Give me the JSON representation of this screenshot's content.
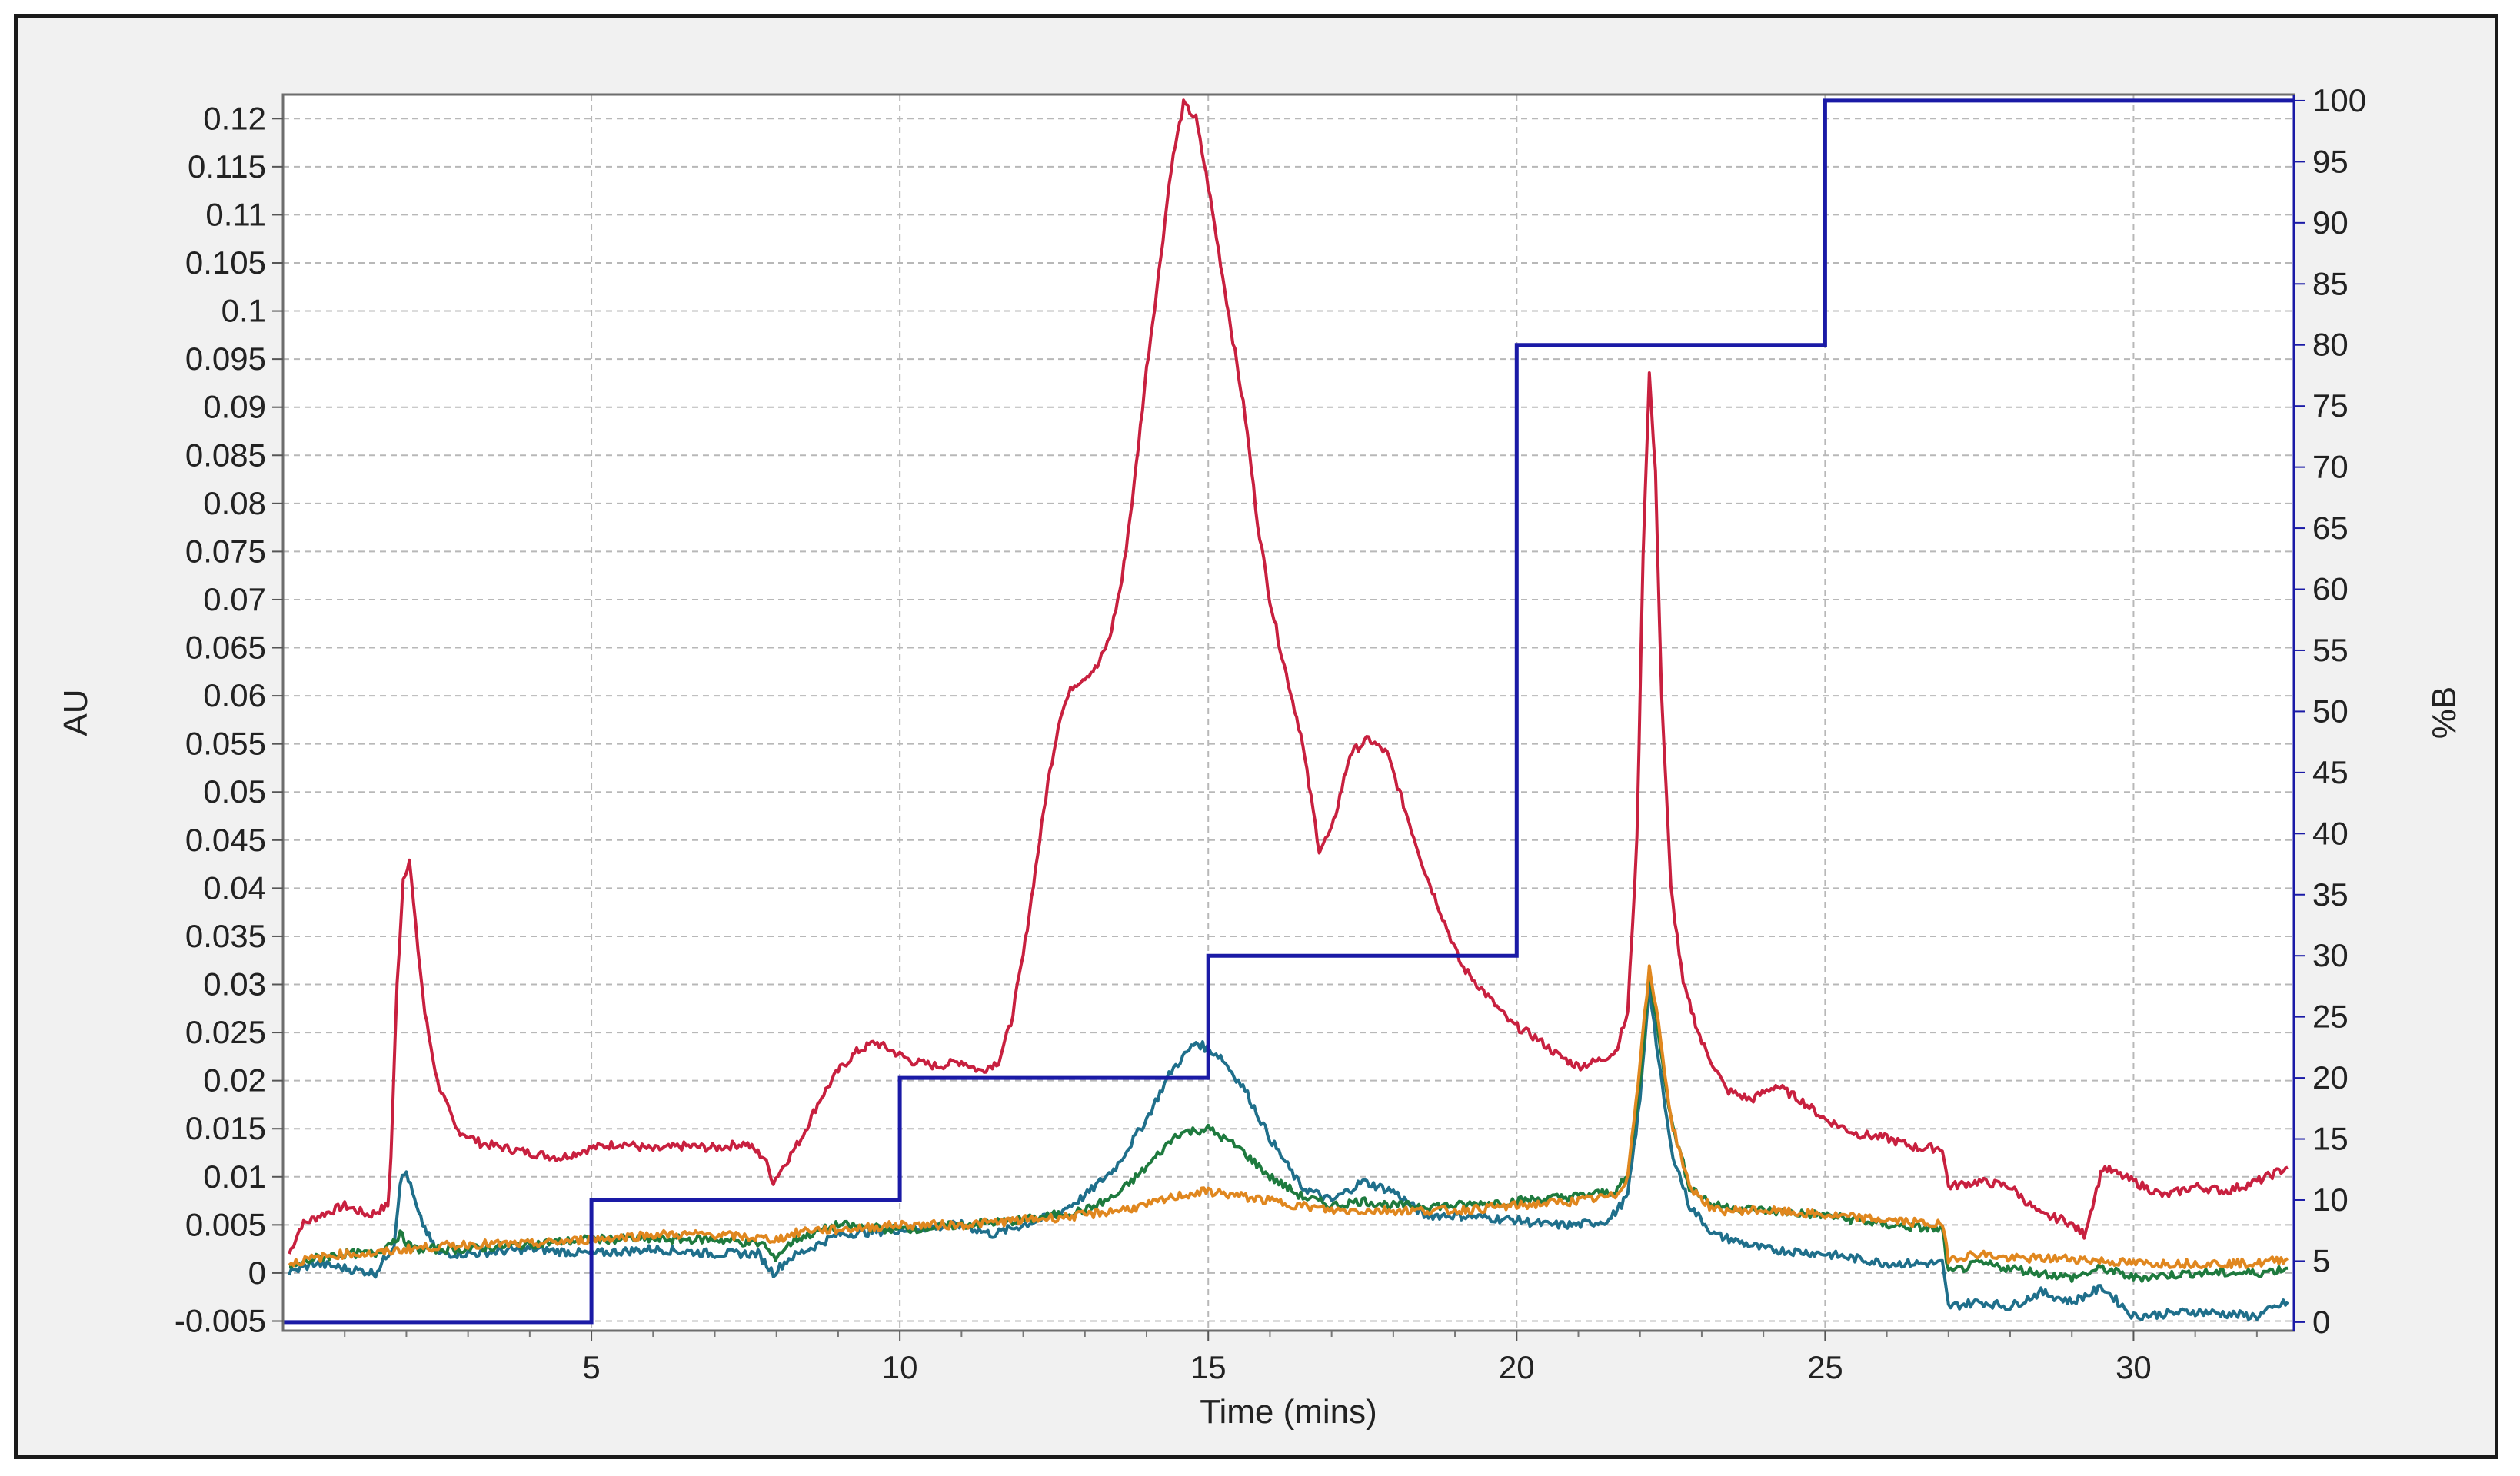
{
  "chart_data": {
    "type": "line",
    "xlabel": "Time (mins)",
    "ylabel": "AU",
    "y2label": "%B",
    "xlim": [
      0,
      32.6
    ],
    "ylim": [
      -0.006,
      0.1225
    ],
    "y2lim": [
      -0.7,
      100.5
    ],
    "xticks": [
      5,
      10,
      15,
      20,
      25,
      30
    ],
    "yticks": [
      -0.005,
      0,
      0.005,
      0.01,
      0.015,
      0.02,
      0.025,
      0.03,
      0.035,
      0.04,
      0.045,
      0.05,
      0.055,
      0.06,
      0.065,
      0.07,
      0.075,
      0.08,
      0.085,
      0.09,
      0.095,
      0.1,
      0.105,
      0.11,
      0.115,
      0.12
    ],
    "ytick_labels": [
      "-0.005",
      "0",
      "0.005",
      "0.01",
      "0.015",
      "0.02",
      "0.025",
      "0.03",
      "0.035",
      "0.04",
      "0.045",
      "0.05",
      "0.055",
      "0.06",
      "0.065",
      "0.07",
      "0.075",
      "0.08",
      "0.085",
      "0.09",
      "0.095",
      "0.1",
      "0.105",
      "0.11",
      "0.115",
      "0.12"
    ],
    "y2ticks": [
      0,
      5,
      10,
      15,
      20,
      25,
      30,
      35,
      40,
      45,
      50,
      55,
      60,
      65,
      70,
      75,
      80,
      85,
      90,
      95,
      100
    ],
    "grid": true,
    "series": [
      {
        "color": "#c8203f",
        "axis": "left",
        "points": [
          [
            0.1,
            0.002
          ],
          [
            0.3,
            0.005
          ],
          [
            0.6,
            0.006
          ],
          [
            1.0,
            0.007
          ],
          [
            1.4,
            0.006
          ],
          [
            1.7,
            0.007
          ],
          [
            1.75,
            0.012
          ],
          [
            1.85,
            0.03
          ],
          [
            1.95,
            0.041
          ],
          [
            2.05,
            0.043
          ],
          [
            2.15,
            0.036
          ],
          [
            2.3,
            0.027
          ],
          [
            2.5,
            0.02
          ],
          [
            2.8,
            0.015
          ],
          [
            3.2,
            0.0135
          ],
          [
            3.6,
            0.013
          ],
          [
            4.0,
            0.0125
          ],
          [
            4.5,
            0.012
          ],
          [
            5.0,
            0.013
          ],
          [
            5.5,
            0.0135
          ],
          [
            6.0,
            0.0128
          ],
          [
            6.5,
            0.0132
          ],
          [
            7.0,
            0.013
          ],
          [
            7.5,
            0.0135
          ],
          [
            7.8,
            0.012
          ],
          [
            7.95,
            0.0095
          ],
          [
            8.1,
            0.011
          ],
          [
            8.4,
            0.014
          ],
          [
            8.7,
            0.018
          ],
          [
            9.0,
            0.021
          ],
          [
            9.3,
            0.023
          ],
          [
            9.6,
            0.024
          ],
          [
            9.9,
            0.023
          ],
          [
            10.2,
            0.022
          ],
          [
            10.6,
            0.0215
          ],
          [
            11.0,
            0.022
          ],
          [
            11.3,
            0.021
          ],
          [
            11.6,
            0.022
          ],
          [
            11.8,
            0.026
          ],
          [
            12.0,
            0.033
          ],
          [
            12.2,
            0.042
          ],
          [
            12.4,
            0.051
          ],
          [
            12.6,
            0.058
          ],
          [
            12.8,
            0.061
          ],
          [
            13.0,
            0.062
          ],
          [
            13.2,
            0.063
          ],
          [
            13.4,
            0.066
          ],
          [
            13.6,
            0.072
          ],
          [
            13.8,
            0.082
          ],
          [
            14.0,
            0.094
          ],
          [
            14.2,
            0.104
          ],
          [
            14.4,
            0.115
          ],
          [
            14.6,
            0.1215
          ],
          [
            14.8,
            0.12
          ],
          [
            15.0,
            0.113
          ],
          [
            15.2,
            0.105
          ],
          [
            15.4,
            0.097
          ],
          [
            15.6,
            0.089
          ],
          [
            15.8,
            0.078
          ],
          [
            16.0,
            0.07
          ],
          [
            16.2,
            0.064
          ],
          [
            16.5,
            0.056
          ],
          [
            16.8,
            0.044
          ],
          [
            17.0,
            0.046
          ],
          [
            17.3,
            0.054
          ],
          [
            17.6,
            0.0555
          ],
          [
            17.9,
            0.054
          ],
          [
            18.2,
            0.048
          ],
          [
            18.5,
            0.042
          ],
          [
            18.8,
            0.037
          ],
          [
            19.1,
            0.032
          ],
          [
            19.5,
            0.029
          ],
          [
            19.9,
            0.026
          ],
          [
            20.3,
            0.0245
          ],
          [
            20.7,
            0.0225
          ],
          [
            21.0,
            0.0215
          ],
          [
            21.3,
            0.022
          ],
          [
            21.6,
            0.023
          ],
          [
            21.8,
            0.027
          ],
          [
            21.95,
            0.045
          ],
          [
            22.05,
            0.075
          ],
          [
            22.15,
            0.0935
          ],
          [
            22.25,
            0.083
          ],
          [
            22.35,
            0.06
          ],
          [
            22.5,
            0.04
          ],
          [
            22.7,
            0.03
          ],
          [
            23.0,
            0.024
          ],
          [
            23.4,
            0.019
          ],
          [
            23.8,
            0.018
          ],
          [
            24.2,
            0.0195
          ],
          [
            24.6,
            0.018
          ],
          [
            25.0,
            0.016
          ],
          [
            25.5,
            0.0145
          ],
          [
            26.0,
            0.014
          ],
          [
            26.5,
            0.013
          ],
          [
            26.9,
            0.013
          ],
          [
            27.0,
            0.009
          ],
          [
            27.5,
            0.0095
          ],
          [
            28.0,
            0.009
          ],
          [
            28.5,
            0.006
          ],
          [
            28.9,
            0.0055
          ],
          [
            29.2,
            0.004
          ],
          [
            29.5,
            0.011
          ],
          [
            30.0,
            0.0095
          ],
          [
            30.5,
            0.008
          ],
          [
            31.0,
            0.009
          ],
          [
            31.5,
            0.0085
          ],
          [
            32.0,
            0.0095
          ],
          [
            32.5,
            0.011
          ]
        ]
      },
      {
        "color": "#1f6f8b",
        "axis": "left",
        "points": [
          [
            0.1,
            0.0
          ],
          [
            0.5,
            0.001
          ],
          [
            1.0,
            0.0005
          ],
          [
            1.5,
            0.0
          ],
          [
            1.8,
            0.003
          ],
          [
            1.9,
            0.0095
          ],
          [
            2.0,
            0.0105
          ],
          [
            2.2,
            0.006
          ],
          [
            2.5,
            0.002
          ],
          [
            3.0,
            0.002
          ],
          [
            4.0,
            0.0025
          ],
          [
            5.0,
            0.002
          ],
          [
            6.0,
            0.0025
          ],
          [
            7.0,
            0.002
          ],
          [
            7.7,
            0.002
          ],
          [
            7.95,
            0.0
          ],
          [
            8.2,
            0.0015
          ],
          [
            9.0,
            0.004
          ],
          [
            10.0,
            0.0045
          ],
          [
            11.0,
            0.005
          ],
          [
            11.5,
            0.004
          ],
          [
            12.0,
            0.005
          ],
          [
            12.5,
            0.006
          ],
          [
            13.0,
            0.008
          ],
          [
            13.5,
            0.011
          ],
          [
            14.0,
            0.016
          ],
          [
            14.4,
            0.021
          ],
          [
            14.8,
            0.024
          ],
          [
            15.2,
            0.0225
          ],
          [
            15.6,
            0.019
          ],
          [
            16.0,
            0.014
          ],
          [
            16.5,
            0.009
          ],
          [
            17.0,
            0.0075
          ],
          [
            17.5,
            0.0095
          ],
          [
            18.0,
            0.0085
          ],
          [
            18.5,
            0.006
          ],
          [
            19.0,
            0.006
          ],
          [
            20.0,
            0.0055
          ],
          [
            20.5,
            0.005
          ],
          [
            21.0,
            0.005
          ],
          [
            21.5,
            0.0055
          ],
          [
            21.8,
            0.008
          ],
          [
            22.0,
            0.018
          ],
          [
            22.15,
            0.03
          ],
          [
            22.3,
            0.022
          ],
          [
            22.5,
            0.013
          ],
          [
            22.8,
            0.007
          ],
          [
            23.2,
            0.004
          ],
          [
            24.0,
            0.0025
          ],
          [
            25.0,
            0.002
          ],
          [
            26.0,
            0.001
          ],
          [
            26.9,
            0.001
          ],
          [
            27.0,
            -0.0035
          ],
          [
            27.5,
            -0.003
          ],
          [
            28.0,
            -0.0035
          ],
          [
            28.5,
            -0.002
          ],
          [
            29.0,
            -0.003
          ],
          [
            29.5,
            -0.0015
          ],
          [
            30.0,
            -0.0045
          ],
          [
            31.0,
            -0.004
          ],
          [
            32.0,
            -0.0045
          ],
          [
            32.5,
            -0.003
          ]
        ]
      },
      {
        "color": "#1e7a3e",
        "axis": "left",
        "points": [
          [
            0.1,
            0.0005
          ],
          [
            0.5,
            0.0015
          ],
          [
            1.0,
            0.002
          ],
          [
            1.5,
            0.002
          ],
          [
            1.9,
            0.004
          ],
          [
            2.1,
            0.0025
          ],
          [
            3.0,
            0.0025
          ],
          [
            4.0,
            0.003
          ],
          [
            5.0,
            0.0035
          ],
          [
            6.0,
            0.0035
          ],
          [
            7.0,
            0.0035
          ],
          [
            7.8,
            0.003
          ],
          [
            7.95,
            0.0015
          ],
          [
            8.3,
            0.0035
          ],
          [
            9.0,
            0.005
          ],
          [
            10.0,
            0.0045
          ],
          [
            11.0,
            0.005
          ],
          [
            12.0,
            0.0055
          ],
          [
            12.5,
            0.006
          ],
          [
            13.0,
            0.0065
          ],
          [
            13.5,
            0.008
          ],
          [
            14.0,
            0.011
          ],
          [
            14.5,
            0.0145
          ],
          [
            15.0,
            0.015
          ],
          [
            15.5,
            0.013
          ],
          [
            16.0,
            0.01
          ],
          [
            16.5,
            0.008
          ],
          [
            17.0,
            0.007
          ],
          [
            17.5,
            0.0075
          ],
          [
            18.0,
            0.007
          ],
          [
            19.0,
            0.007
          ],
          [
            20.0,
            0.0075
          ],
          [
            21.0,
            0.008
          ],
          [
            21.6,
            0.0085
          ],
          [
            21.8,
            0.01
          ],
          [
            22.0,
            0.02
          ],
          [
            22.15,
            0.031
          ],
          [
            22.3,
            0.025
          ],
          [
            22.5,
            0.016
          ],
          [
            22.8,
            0.009
          ],
          [
            23.2,
            0.007
          ],
          [
            24.0,
            0.0065
          ],
          [
            25.0,
            0.006
          ],
          [
            26.0,
            0.005
          ],
          [
            26.9,
            0.0045
          ],
          [
            27.0,
            0.0
          ],
          [
            27.5,
            0.001
          ],
          [
            28.0,
            0.0005
          ],
          [
            28.5,
            0.0
          ],
          [
            29.0,
            -0.0005
          ],
          [
            29.5,
            0.0005
          ],
          [
            30.0,
            -0.0005
          ],
          [
            31.0,
            0.0
          ],
          [
            32.0,
            0.0
          ],
          [
            32.5,
            0.0005
          ]
        ]
      },
      {
        "color": "#e0871f",
        "axis": "left",
        "points": [
          [
            0.1,
            0.001
          ],
          [
            0.5,
            0.0015
          ],
          [
            1.0,
            0.002
          ],
          [
            1.5,
            0.002
          ],
          [
            2.0,
            0.0025
          ],
          [
            3.0,
            0.003
          ],
          [
            4.0,
            0.003
          ],
          [
            5.0,
            0.0035
          ],
          [
            6.0,
            0.004
          ],
          [
            7.0,
            0.004
          ],
          [
            8.0,
            0.0035
          ],
          [
            8.5,
            0.0045
          ],
          [
            9.0,
            0.0045
          ],
          [
            10.0,
            0.005
          ],
          [
            11.0,
            0.005
          ],
          [
            12.0,
            0.0055
          ],
          [
            13.0,
            0.006
          ],
          [
            14.0,
            0.007
          ],
          [
            14.5,
            0.008
          ],
          [
            15.0,
            0.0085
          ],
          [
            15.5,
            0.008
          ],
          [
            16.0,
            0.0075
          ],
          [
            17.0,
            0.0065
          ],
          [
            18.0,
            0.0065
          ],
          [
            19.0,
            0.0065
          ],
          [
            20.0,
            0.007
          ],
          [
            21.0,
            0.0075
          ],
          [
            21.6,
            0.008
          ],
          [
            21.8,
            0.01
          ],
          [
            22.0,
            0.022
          ],
          [
            22.15,
            0.0315
          ],
          [
            22.3,
            0.026
          ],
          [
            22.5,
            0.016
          ],
          [
            22.8,
            0.009
          ],
          [
            23.2,
            0.0065
          ],
          [
            24.0,
            0.0065
          ],
          [
            25.0,
            0.006
          ],
          [
            26.0,
            0.0055
          ],
          [
            26.9,
            0.005
          ],
          [
            27.0,
            0.0015
          ],
          [
            27.5,
            0.002
          ],
          [
            28.0,
            0.0015
          ],
          [
            29.0,
            0.0015
          ],
          [
            30.0,
            0.001
          ],
          [
            31.0,
            0.001
          ],
          [
            32.0,
            0.001
          ],
          [
            32.5,
            0.0015
          ]
        ]
      },
      {
        "color": "#1a1aa6",
        "axis": "right",
        "step": true,
        "points": [
          [
            0.0,
            0
          ],
          [
            5.0,
            0
          ],
          [
            5.0,
            10
          ],
          [
            10.0,
            10
          ],
          [
            10.0,
            20
          ],
          [
            15.0,
            20
          ],
          [
            15.0,
            30
          ],
          [
            20.0,
            30
          ],
          [
            20.0,
            80
          ],
          [
            25.0,
            80
          ],
          [
            25.0,
            100
          ],
          [
            32.6,
            100
          ]
        ]
      }
    ]
  }
}
